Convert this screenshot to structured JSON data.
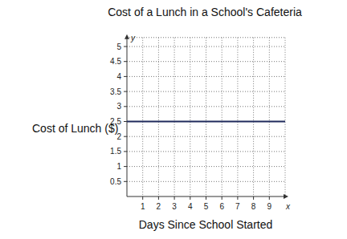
{
  "chart_data": {
    "type": "line",
    "title": "Cost of a Lunch in a School's Cafeteria",
    "x_label": "Days Since School Started",
    "y_label": "Cost of Lunch ($)",
    "x_symbol": "x",
    "y_symbol": "y",
    "x": [
      0,
      10
    ],
    "series": [
      {
        "color": "#1f2a5c",
        "values": [
          2.5,
          2.5
        ]
      }
    ],
    "xlim": [
      0,
      10
    ],
    "xticks": [
      1,
      2,
      3,
      4,
      5,
      6,
      7,
      8,
      9
    ],
    "ylim": [
      0,
      5.3
    ],
    "yticks": [
      0.5,
      1,
      1.5,
      2,
      2.5,
      3,
      3.5,
      4,
      4.5,
      5
    ],
    "grid": true
  }
}
